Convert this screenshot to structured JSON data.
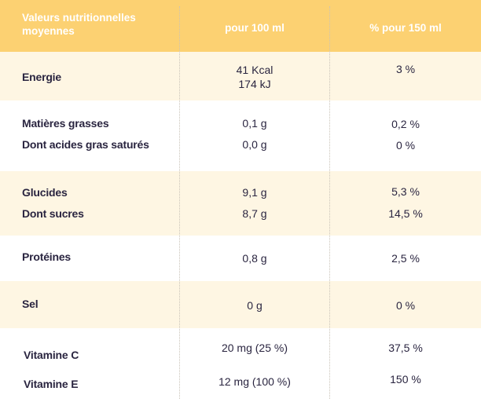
{
  "header": {
    "col1": "Valeurs nutritionnelles moyennes",
    "col2": "pour 100 ml",
    "col3": "% pour 150 ml"
  },
  "rows": [
    {
      "label": "Energie",
      "per100": "41 Kcal",
      "per100_line2": "174 kJ",
      "per150": "3 %"
    },
    {
      "label": "Matières grasses",
      "per100": "0,1 g",
      "per150": "0,2 %"
    },
    {
      "label": "Dont acides gras saturés",
      "per100": "0,0 g",
      "per150": "0 %"
    },
    {
      "label": "Glucides",
      "per100": "9,1 g",
      "per150": "5,3 %"
    },
    {
      "label": "Dont sucres",
      "per100": "8,7 g",
      "per150": "14,5 %"
    },
    {
      "label": "Protéines",
      "per100": "0,8 g",
      "per150": "2,5 %"
    },
    {
      "label": "Sel",
      "per100": "0 g",
      "per150": "0 %"
    },
    {
      "label": "Vitamine C",
      "per100": "20 mg (25 %)",
      "per150": "37,5 %"
    },
    {
      "label": "Vitamine E",
      "per100": "12 mg (100 %)",
      "per150": "150 %"
    }
  ],
  "colors": {
    "header_bg": "#fcd172",
    "tint_bg": "#fef6e3",
    "text": "#2a2540"
  }
}
